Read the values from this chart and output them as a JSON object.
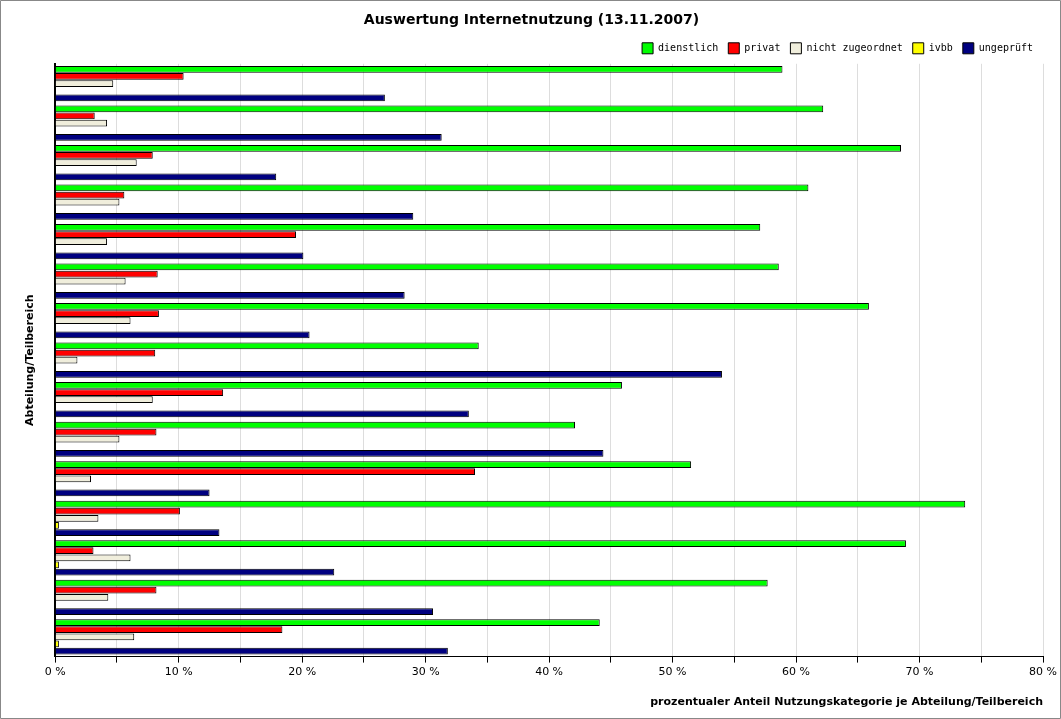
{
  "chart_data": {
    "type": "bar",
    "orientation": "horizontal",
    "title": "Auswertung Internetnutzung (13.11.2007)",
    "xlabel": "prozentualer Anteil Nutzungskategorie je Abteilung/Teilbereich",
    "ylabel": "Abteilung/Teilbereich",
    "categories": [
      null,
      null,
      null,
      null,
      null,
      null,
      null,
      null,
      null,
      null,
      null,
      null,
      null,
      null,
      null
    ],
    "series": [
      {
        "name": "dienstlich",
        "color": "#00ff00",
        "values": [
          58.9,
          62.2,
          68.5,
          61.0,
          57.1,
          58.6,
          65.9,
          34.3,
          45.9,
          42.1,
          51.5,
          73.7,
          68.9,
          57.7,
          44.1
        ]
      },
      {
        "name": "privat",
        "color": "#ff0000",
        "values": [
          10.4,
          3.2,
          7.9,
          5.6,
          19.5,
          8.3,
          8.4,
          8.1,
          13.6,
          8.2,
          34.0,
          10.1,
          3.1,
          8.2,
          18.4
        ]
      },
      {
        "name": "nicht zugeordnet",
        "color": "#f0eedc",
        "values": [
          4.7,
          4.2,
          6.6,
          5.2,
          4.2,
          5.7,
          6.1,
          1.8,
          7.9,
          5.2,
          2.9,
          3.5,
          6.1,
          4.3,
          6.4
        ]
      },
      {
        "name": "ivbb",
        "color": "#ffff00",
        "values": [
          0,
          0,
          0,
          0,
          0,
          0,
          0,
          0,
          0,
          0,
          0,
          0.3,
          0.3,
          0,
          0.3
        ]
      },
      {
        "name": "ungeprüft",
        "color": "#000080",
        "values": [
          26.7,
          31.3,
          17.9,
          29.0,
          20.1,
          28.3,
          20.6,
          54.0,
          33.5,
          44.4,
          12.5,
          13.3,
          22.6,
          30.6,
          31.8
        ]
      }
    ],
    "xlim": [
      0,
      80
    ],
    "xticks": [
      {
        "value": 0,
        "label": "0 %"
      },
      {
        "value": 5,
        "label": null
      },
      {
        "value": 10,
        "label": "10 %"
      },
      {
        "value": 15,
        "label": null
      },
      {
        "value": 20,
        "label": "20 %"
      },
      {
        "value": 25,
        "label": null
      },
      {
        "value": 30,
        "label": "30 %"
      },
      {
        "value": 35,
        "label": null
      },
      {
        "value": 40,
        "label": "40 %"
      },
      {
        "value": 45,
        "label": null
      },
      {
        "value": 50,
        "label": "50 %"
      },
      {
        "value": 55,
        "label": null
      },
      {
        "value": 60,
        "label": "60 %"
      },
      {
        "value": 65,
        "label": null
      },
      {
        "value": 70,
        "label": "70 %"
      },
      {
        "value": 75,
        "label": null
      },
      {
        "value": 80,
        "label": "80 %"
      }
    ],
    "grid": "x",
    "legend": "top right"
  }
}
